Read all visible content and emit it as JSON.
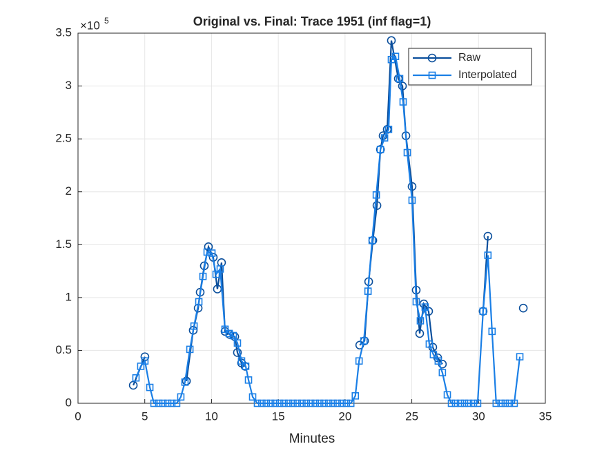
{
  "chart_data": {
    "type": "line",
    "title": "Original vs. Final: Trace 1951 (inf flag=1)",
    "x_label": "Minutes",
    "y_multiplier": {
      "base": "×10",
      "exponent": "5"
    },
    "xlim": [
      0,
      35
    ],
    "xticks": [
      0,
      5,
      10,
      15,
      20,
      25,
      30,
      35
    ],
    "ylim": [
      0,
      3.5
    ],
    "yticks": [
      0,
      0.5,
      1,
      1.5,
      2,
      2.5,
      3,
      3.5
    ],
    "grid": true,
    "legend_position": "upper-right",
    "series": [
      {
        "name": "Raw",
        "color": "#0b4f9c",
        "marker": "circle",
        "x": [
          4.14,
          5.01,
          6.5,
          8.12,
          8.63,
          9.0,
          9.15,
          9.46,
          9.77,
          10.13,
          10.44,
          10.75,
          11.01,
          11.37,
          11.74,
          11.94,
          12.25,
          12.51,
          17,
          21.1,
          21.46,
          21.77,
          22.08,
          22.39,
          22.65,
          22.85,
          23.16,
          23.47,
          23.99,
          24.3,
          24.56,
          25.02,
          25.33,
          25.59,
          25.9,
          26.26,
          26.57,
          26.94,
          27.29,
          28.5,
          30.34,
          30.7,
          32,
          33.35
        ],
        "values": [
          0.17,
          0.44,
          null,
          0.21,
          0.69,
          0.9,
          1.05,
          1.3,
          1.48,
          1.38,
          1.08,
          1.33,
          0.68,
          0.65,
          0.63,
          0.48,
          0.38,
          0.35,
          null,
          0.55,
          0.59,
          1.15,
          1.54,
          1.87,
          2.4,
          2.53,
          2.59,
          3.43,
          3.07,
          3.0,
          2.53,
          2.05,
          1.07,
          0.66,
          0.94,
          0.87,
          0.53,
          0.43,
          0.37,
          null,
          0.87,
          1.58,
          null,
          0.9
        ]
      },
      {
        "name": "Interpolated",
        "color": "#1a7fe6",
        "marker": "square",
        "x": [
          4.34,
          4.7,
          5.01,
          5.38,
          5.69,
          6.05,
          6.36,
          6.72,
          7.03,
          7.39,
          7.7,
          8.01,
          8.38,
          8.69,
          9.05,
          9.36,
          9.67,
          10.03,
          10.34,
          10.65,
          11.01,
          11.32,
          11.63,
          11.94,
          12.25,
          12.56,
          12.77,
          13.08,
          13.44,
          13.77,
          14.1,
          14.43,
          14.77,
          15.1,
          15.43,
          15.77,
          16.1,
          16.43,
          16.77,
          17.1,
          17.43,
          17.77,
          18.1,
          18.43,
          18.77,
          19.1,
          19.43,
          19.77,
          20.1,
          20.43,
          20.77,
          21.05,
          21.41,
          21.72,
          22.03,
          22.34,
          22.65,
          22.96,
          23.26,
          23.47,
          23.78,
          24.09,
          24.35,
          24.66,
          25.02,
          25.33,
          25.64,
          26.0,
          26.31,
          26.62,
          26.98,
          27.29,
          27.66,
          27.97,
          28.28,
          28.64,
          28.95,
          29.26,
          29.62,
          29.93,
          30.34,
          30.7,
          31.01,
          31.32,
          31.68,
          32.0,
          32.31,
          32.67,
          33.09
        ],
        "values": [
          0.24,
          0.35,
          0.4,
          0.15,
          0,
          0,
          0,
          0,
          0,
          0,
          0.06,
          0.2,
          0.51,
          0.73,
          0.96,
          1.2,
          1.43,
          1.42,
          1.22,
          1.27,
          0.7,
          0.66,
          0.64,
          0.57,
          0.4,
          0.35,
          0.22,
          0.06,
          0,
          0,
          0,
          0,
          0,
          0,
          0,
          0,
          0,
          0,
          0,
          0,
          0,
          0,
          0,
          0,
          0,
          0,
          0,
          0,
          0,
          0,
          0.07,
          0.4,
          0.59,
          1.06,
          1.54,
          1.97,
          2.4,
          2.51,
          2.59,
          3.25,
          3.28,
          3.07,
          2.85,
          2.37,
          1.92,
          0.96,
          0.78,
          0.91,
          0.56,
          0.46,
          0.4,
          0.29,
          0.08,
          0,
          0,
          0,
          0,
          0,
          0,
          0,
          0.87,
          1.4,
          0.68,
          0,
          0,
          0,
          0,
          0,
          0.44
        ]
      }
    ]
  }
}
